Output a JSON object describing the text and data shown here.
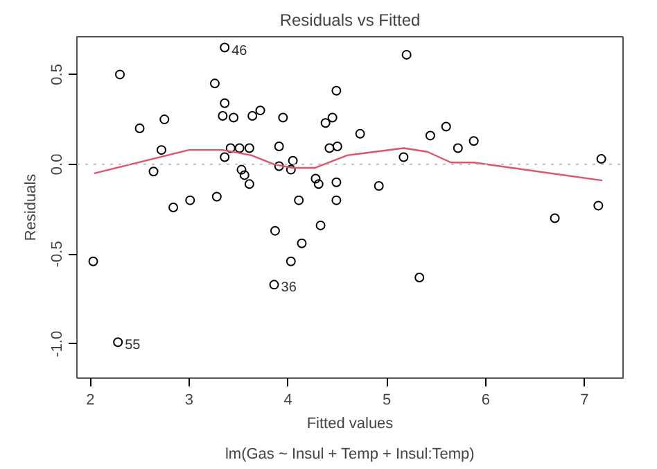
{
  "chart_data": {
    "type": "scatter",
    "title": "Residuals vs Fitted",
    "xlabel": "Fitted values",
    "ylabel": "Residuals",
    "annotations": [
      {
        "text": "46",
        "x": 3.36,
        "y": 0.65
      },
      {
        "text": "55",
        "x": 2.28,
        "y": -0.99
      },
      {
        "text": "36",
        "x": 3.86,
        "y": -0.67
      },
      "lm(Gas ~ Insul + Temp + Insul:Temp)"
    ],
    "xlim": [
      1.865,
      7.39
    ],
    "ylim": [
      -1.19,
      0.71
    ],
    "xticks": [
      2,
      3,
      4,
      5,
      6,
      7
    ],
    "yticks": [
      {
        "value": -1.0,
        "label": "-1.0"
      },
      {
        "value": -0.5,
        "label": "-0.5"
      },
      {
        "value": 0,
        "label": "0.0"
      },
      {
        "value": 0.5,
        "label": "0.5"
      }
    ],
    "grid": false,
    "ref_lines": [
      {
        "axis": "y",
        "value": 0,
        "color": "#bebebe",
        "line_style": "dotted"
      }
    ],
    "series": [
      {
        "marker": "circle",
        "color": "#000000",
        "x": [
          2.03,
          2.28,
          2.3,
          2.5,
          2.64,
          2.75,
          2.72,
          2.84,
          3.01,
          3.26,
          3.36,
          3.28,
          3.36,
          3.34,
          3.45,
          3.36,
          3.42,
          3.51,
          3.61,
          3.53,
          3.56,
          3.61,
          3.64,
          3.72,
          3.95,
          3.91,
          3.91,
          3.87,
          3.86,
          4.03,
          4.03,
          4.05,
          4.11,
          4.14,
          4.28,
          4.31,
          4.33,
          4.38,
          4.42,
          4.45,
          4.49,
          4.5,
          4.49,
          4.49,
          4.73,
          4.92,
          5.17,
          5.2,
          5.33,
          5.44,
          5.6,
          5.72,
          5.88,
          6.7,
          7.14,
          7.17
        ],
        "values": [
          -0.54,
          -0.99,
          0.5,
          0.2,
          -0.04,
          0.25,
          0.08,
          -0.24,
          -0.2,
          0.45,
          0.65,
          -0.18,
          0.34,
          0.27,
          0.26,
          0.04,
          0.09,
          0.09,
          0.09,
          -0.03,
          -0.06,
          -0.11,
          0.27,
          0.3,
          0.26,
          0.1,
          -0.01,
          -0.37,
          -0.67,
          -0.03,
          -0.54,
          0.02,
          -0.2,
          -0.44,
          -0.08,
          -0.11,
          -0.34,
          0.23,
          0.09,
          0.26,
          0.41,
          0.1,
          -0.1,
          -0.2,
          0.17,
          -0.12,
          0.04,
          0.61,
          -0.63,
          0.16,
          0.21,
          0.09,
          0.13,
          -0.3,
          -0.23,
          0.03
        ]
      },
      {
        "type": "line",
        "color": "#df536b",
        "x": [
          2.04,
          3.0,
          3.34,
          3.63,
          3.86,
          4.05,
          4.27,
          4.6,
          5.17,
          5.41,
          5.65,
          5.88,
          7.18
        ],
        "values": [
          -0.05,
          0.08,
          0.08,
          0.05,
          0.0,
          -0.02,
          -0.02,
          0.05,
          0.09,
          0.07,
          0.01,
          0.01,
          -0.09
        ]
      }
    ]
  }
}
